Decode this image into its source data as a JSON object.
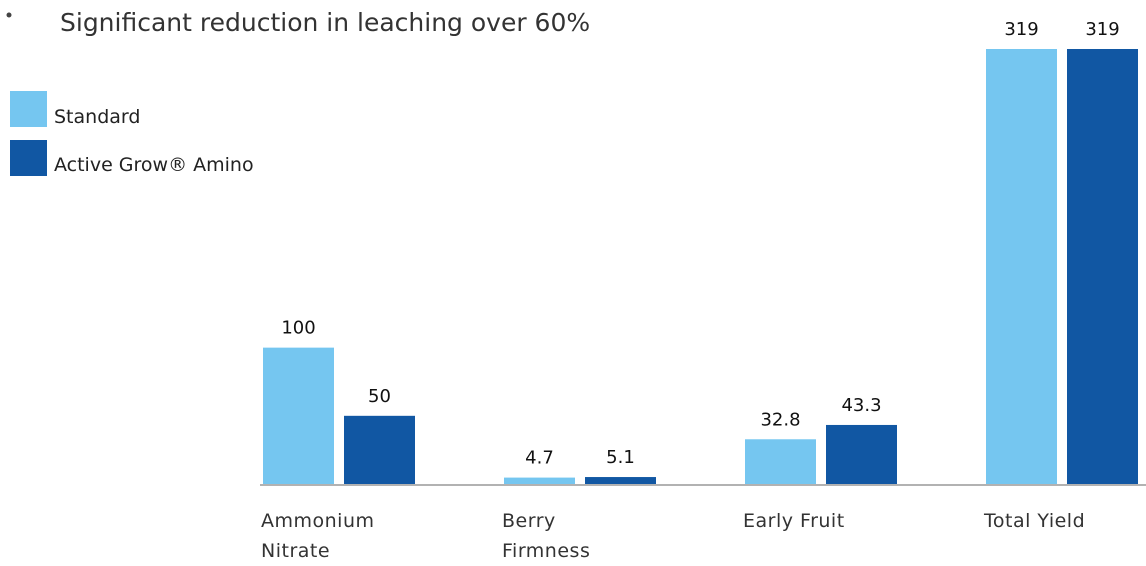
{
  "chart_data": {
    "type": "bar",
    "title": "Significant reduction in leaching over 60%",
    "categories": [
      "Ammonium Nitrate",
      "Berry Firmness",
      "Early Fruit",
      "Total Yield"
    ],
    "series": [
      {
        "name": "Standard",
        "color": "#75c6f0",
        "values": [
          100,
          4.7,
          32.8,
          319
        ]
      },
      {
        "name": "Active Grow® Amino",
        "color": "#1157a3",
        "values": [
          50,
          5.1,
          43.3,
          319
        ]
      }
    ]
  }
}
